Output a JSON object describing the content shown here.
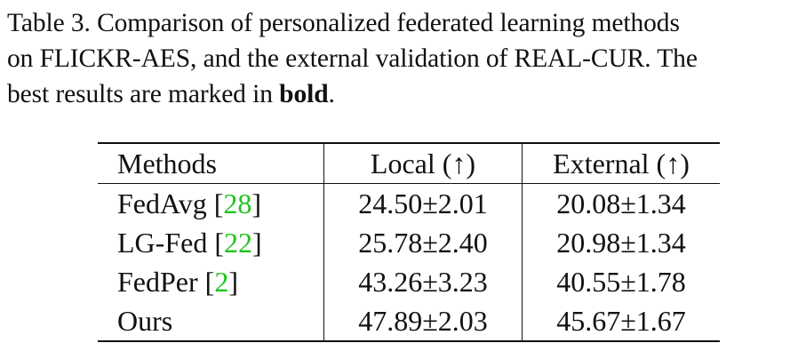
{
  "caption": {
    "line1": "Table 3.  Comparison of personalized federated learning methods",
    "line2": "on FLICKR-AES, and the external validation of REAL-CUR. The",
    "line3_prefix": "best results are marked in ",
    "line3_bold": "bold",
    "line3_suffix": "."
  },
  "table": {
    "headers": [
      "Methods",
      "Local (↑)",
      "External (↑)"
    ],
    "rows": [
      {
        "method": "FedAvg",
        "cite": "28",
        "local": "24.50±2.01",
        "external": "20.08±1.34",
        "best": false
      },
      {
        "method": "LG-Fed",
        "cite": "22",
        "local": "25.78±2.40",
        "external": "20.98±1.34",
        "best": false
      },
      {
        "method": "FedPer",
        "cite": "2",
        "local": "43.26±3.23",
        "external": "40.55±1.78",
        "best": false
      },
      {
        "method": "Ours",
        "cite": "",
        "local": "47.89±2.03",
        "external": "45.67±1.67",
        "best": true
      }
    ]
  },
  "colors": {
    "citation": "#1ec41e",
    "text": "#111111"
  }
}
